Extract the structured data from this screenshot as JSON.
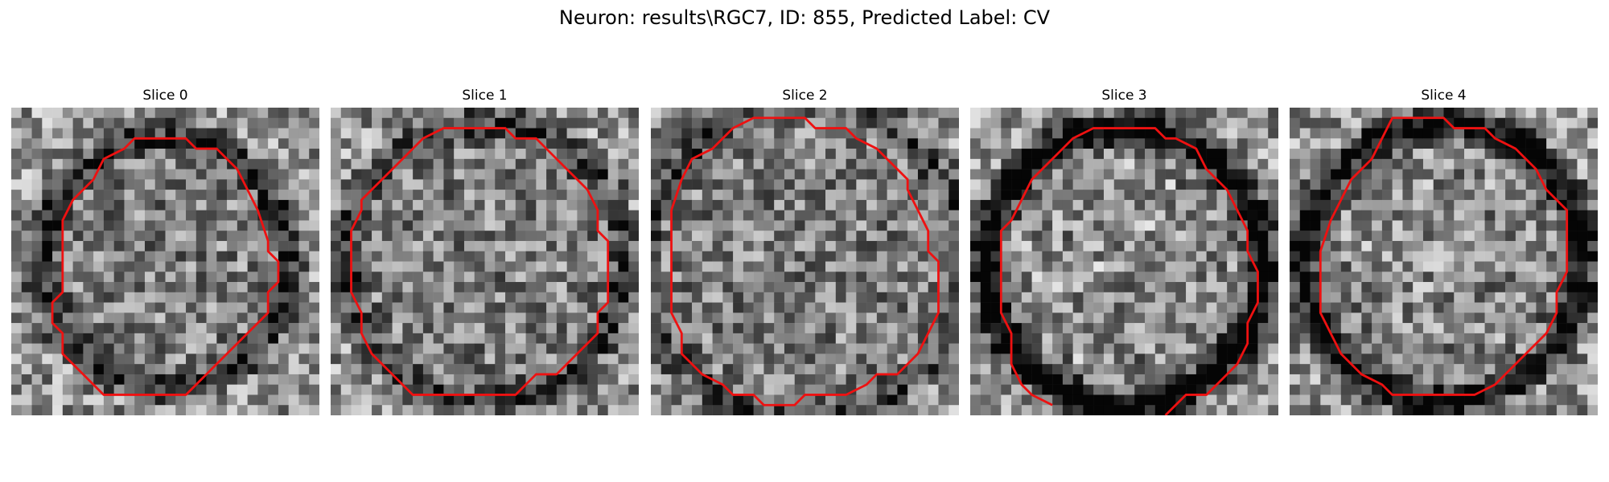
{
  "figure": {
    "suptitle": "Neuron: results\\RGC7, ID: 855, Predicted Label: CV",
    "colormap": "gray",
    "contour_color": "#ee1111"
  },
  "panels": [
    {
      "title": "Slice 0",
      "contour": [
        [
          13,
          3
        ],
        [
          17,
          3
        ],
        [
          18,
          4
        ],
        [
          20,
          4
        ],
        [
          21,
          5
        ],
        [
          22,
          6
        ],
        [
          23,
          8
        ],
        [
          24,
          10
        ],
        [
          25,
          13
        ],
        [
          25,
          14
        ],
        [
          26,
          15
        ],
        [
          26,
          17
        ],
        [
          25,
          18
        ],
        [
          25,
          20
        ],
        [
          24,
          21
        ],
        [
          23,
          22
        ],
        [
          22,
          23
        ],
        [
          21,
          24
        ],
        [
          20,
          25
        ],
        [
          19,
          26
        ],
        [
          18,
          27
        ],
        [
          17,
          28
        ],
        [
          15,
          28
        ],
        [
          13,
          28
        ],
        [
          11,
          28
        ],
        [
          9,
          28
        ],
        [
          8,
          27
        ],
        [
          7,
          26
        ],
        [
          6,
          25
        ],
        [
          5,
          24
        ],
        [
          5,
          22
        ],
        [
          4,
          21
        ],
        [
          4,
          19
        ],
        [
          5,
          18
        ],
        [
          5,
          15
        ],
        [
          5,
          11
        ],
        [
          6,
          9
        ],
        [
          7,
          8
        ],
        [
          8,
          7
        ],
        [
          9,
          5
        ],
        [
          11,
          4
        ],
        [
          12,
          3
        ]
      ]
    },
    {
      "title": "Slice 1",
      "contour": [
        [
          11,
          2
        ],
        [
          17,
          2
        ],
        [
          18,
          3
        ],
        [
          20,
          3
        ],
        [
          21,
          4
        ],
        [
          22,
          5
        ],
        [
          24,
          7
        ],
        [
          25,
          8
        ],
        [
          26,
          10
        ],
        [
          26,
          12
        ],
        [
          27,
          13
        ],
        [
          27,
          17
        ],
        [
          27,
          19
        ],
        [
          26,
          20
        ],
        [
          26,
          22
        ],
        [
          25,
          23
        ],
        [
          24,
          24
        ],
        [
          23,
          25
        ],
        [
          22,
          26
        ],
        [
          20,
          26
        ],
        [
          19,
          27
        ],
        [
          18,
          28
        ],
        [
          14,
          28
        ],
        [
          10,
          28
        ],
        [
          8,
          28
        ],
        [
          7,
          27
        ],
        [
          6,
          26
        ],
        [
          5,
          25
        ],
        [
          4,
          24
        ],
        [
          3,
          22
        ],
        [
          3,
          20
        ],
        [
          2,
          18
        ],
        [
          2,
          15
        ],
        [
          2,
          12
        ],
        [
          3,
          10
        ],
        [
          3,
          9
        ],
        [
          4,
          8
        ],
        [
          5,
          7
        ],
        [
          6,
          6
        ],
        [
          7,
          5
        ],
        [
          8,
          4
        ],
        [
          9,
          3
        ]
      ]
    },
    {
      "title": "Slice 2",
      "contour": [
        [
          10,
          1
        ],
        [
          11,
          1
        ],
        [
          15,
          1
        ],
        [
          16,
          2
        ],
        [
          19,
          2
        ],
        [
          20,
          3
        ],
        [
          22,
          4
        ],
        [
          23,
          5
        ],
        [
          24,
          6
        ],
        [
          25,
          7
        ],
        [
          25,
          8
        ],
        [
          26,
          10
        ],
        [
          27,
          12
        ],
        [
          27,
          14
        ],
        [
          28,
          15
        ],
        [
          28,
          18
        ],
        [
          28,
          20
        ],
        [
          27,
          22
        ],
        [
          26,
          24
        ],
        [
          25,
          25
        ],
        [
          24,
          26
        ],
        [
          22,
          26
        ],
        [
          21,
          27
        ],
        [
          19,
          28
        ],
        [
          15,
          28
        ],
        [
          14,
          29
        ],
        [
          11,
          29
        ],
        [
          10,
          28
        ],
        [
          8,
          28
        ],
        [
          7,
          27
        ],
        [
          5,
          26
        ],
        [
          4,
          25
        ],
        [
          3,
          24
        ],
        [
          3,
          22
        ],
        [
          2,
          20
        ],
        [
          2,
          10
        ],
        [
          3,
          7
        ],
        [
          4,
          5
        ],
        [
          6,
          4
        ],
        [
          7,
          3
        ],
        [
          8,
          2
        ]
      ]
    },
    {
      "title": "Slice 3",
      "contour": [
        [
          13,
          2
        ],
        [
          18,
          2
        ],
        [
          19,
          3
        ],
        [
          20,
          3
        ],
        [
          22,
          4
        ],
        [
          23,
          6
        ],
        [
          24,
          7
        ],
        [
          25,
          8
        ],
        [
          26,
          10
        ],
        [
          27,
          12
        ],
        [
          27,
          14
        ],
        [
          28,
          16
        ],
        [
          28,
          19
        ],
        [
          27,
          21
        ],
        [
          27,
          23
        ],
        [
          26,
          25
        ],
        [
          25,
          26
        ],
        [
          24,
          27
        ],
        [
          23,
          28
        ],
        [
          21,
          28
        ],
        [
          20,
          29
        ],
        [
          19,
          30
        ]
      ]
    },
    {
      "title": "Slice 4",
      "contour": [
        [
          10,
          1
        ],
        [
          12,
          1
        ],
        [
          14,
          1
        ],
        [
          15,
          1
        ],
        [
          16,
          2
        ],
        [
          19,
          2
        ],
        [
          20,
          3
        ],
        [
          22,
          4
        ],
        [
          23,
          5
        ],
        [
          24,
          6
        ],
        [
          25,
          8
        ],
        [
          26,
          9
        ],
        [
          27,
          10
        ],
        [
          27,
          14
        ],
        [
          27,
          16
        ],
        [
          26,
          18
        ],
        [
          26,
          20
        ],
        [
          25,
          22
        ],
        [
          24,
          23
        ],
        [
          23,
          24
        ],
        [
          22,
          25
        ],
        [
          21,
          26
        ],
        [
          20,
          27
        ],
        [
          18,
          28
        ],
        [
          14,
          28
        ],
        [
          10,
          28
        ],
        [
          9,
          27
        ],
        [
          7,
          26
        ],
        [
          6,
          25
        ],
        [
          5,
          24
        ],
        [
          4,
          22
        ],
        [
          3,
          20
        ],
        [
          3,
          17
        ],
        [
          3,
          14
        ],
        [
          4,
          11
        ],
        [
          5,
          9
        ],
        [
          6,
          7
        ],
        [
          7,
          6
        ],
        [
          8,
          5
        ],
        [
          9,
          3
        ]
      ]
    }
  ]
}
